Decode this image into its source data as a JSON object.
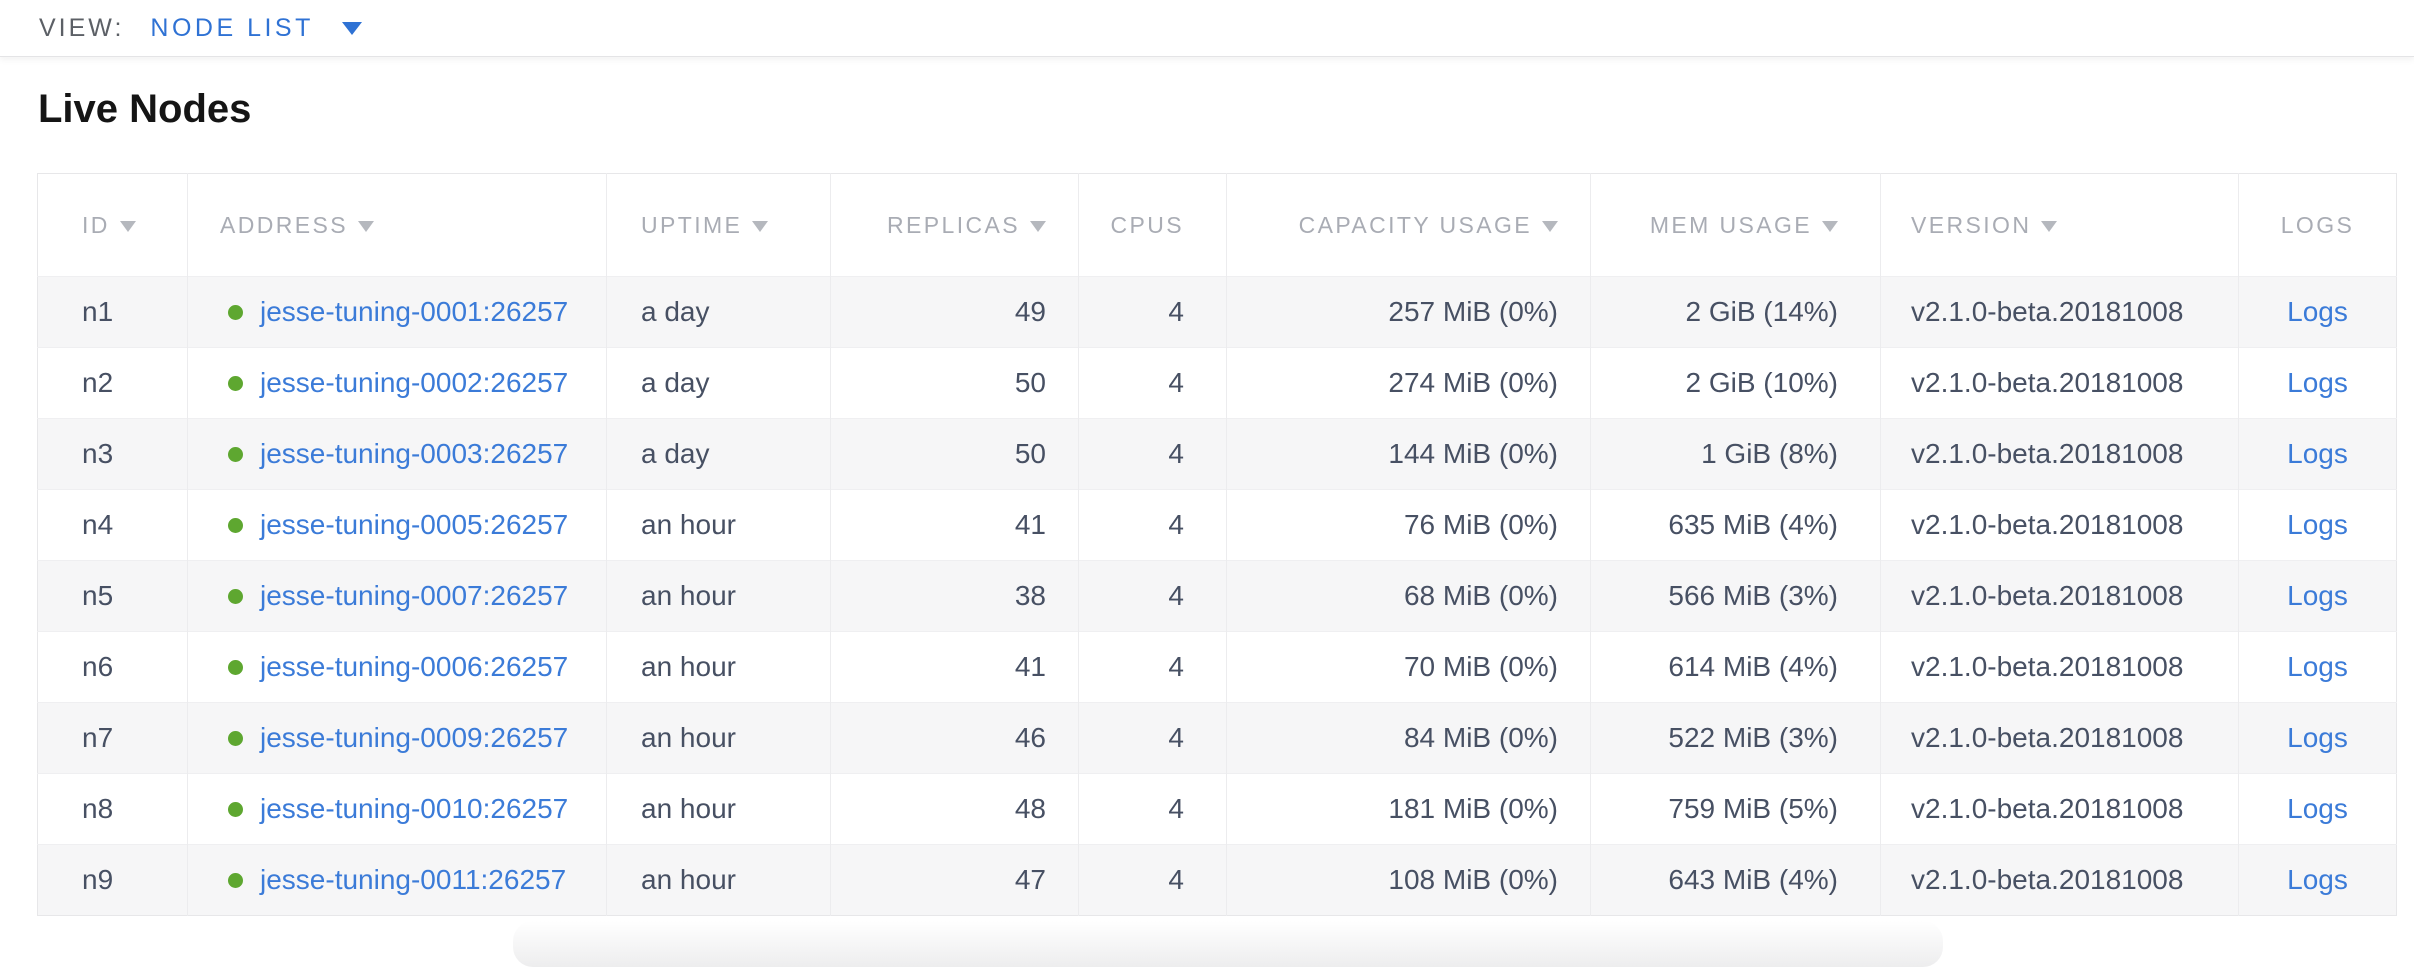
{
  "view_bar": {
    "label": "VIEW:",
    "selected": "NODE LIST"
  },
  "page": {
    "title": "Live Nodes"
  },
  "table": {
    "columns": [
      {
        "key": "id",
        "label": "ID",
        "sortable": true
      },
      {
        "key": "addr",
        "label": "ADDRESS",
        "sortable": true
      },
      {
        "key": "uptime",
        "label": "UPTIME",
        "sortable": true
      },
      {
        "key": "repl",
        "label": "REPLICAS",
        "sortable": true
      },
      {
        "key": "cpus",
        "label": "CPUS",
        "sortable": false
      },
      {
        "key": "cap",
        "label": "CAPACITY USAGE",
        "sortable": true
      },
      {
        "key": "mem",
        "label": "MEM USAGE",
        "sortable": true
      },
      {
        "key": "ver",
        "label": "VERSION",
        "sortable": true
      },
      {
        "key": "logs",
        "label": "LOGS",
        "sortable": false
      }
    ],
    "rows": [
      {
        "id": "n1",
        "address": "jesse-tuning-0001:26257",
        "status": "live",
        "uptime": "a day",
        "replicas": "49",
        "cpus": "4",
        "capacity_usage": "257 MiB (0%)",
        "mem_usage": "2 GiB (14%)",
        "version": "v2.1.0-beta.20181008",
        "logs_label": "Logs"
      },
      {
        "id": "n2",
        "address": "jesse-tuning-0002:26257",
        "status": "live",
        "uptime": "a day",
        "replicas": "50",
        "cpus": "4",
        "capacity_usage": "274 MiB (0%)",
        "mem_usage": "2 GiB (10%)",
        "version": "v2.1.0-beta.20181008",
        "logs_label": "Logs"
      },
      {
        "id": "n3",
        "address": "jesse-tuning-0003:26257",
        "status": "live",
        "uptime": "a day",
        "replicas": "50",
        "cpus": "4",
        "capacity_usage": "144 MiB (0%)",
        "mem_usage": "1 GiB (8%)",
        "version": "v2.1.0-beta.20181008",
        "logs_label": "Logs"
      },
      {
        "id": "n4",
        "address": "jesse-tuning-0005:26257",
        "status": "live",
        "uptime": "an hour",
        "replicas": "41",
        "cpus": "4",
        "capacity_usage": "76 MiB (0%)",
        "mem_usage": "635 MiB (4%)",
        "version": "v2.1.0-beta.20181008",
        "logs_label": "Logs"
      },
      {
        "id": "n5",
        "address": "jesse-tuning-0007:26257",
        "status": "live",
        "uptime": "an hour",
        "replicas": "38",
        "cpus": "4",
        "capacity_usage": "68 MiB (0%)",
        "mem_usage": "566 MiB (3%)",
        "version": "v2.1.0-beta.20181008",
        "logs_label": "Logs"
      },
      {
        "id": "n6",
        "address": "jesse-tuning-0006:26257",
        "status": "live",
        "uptime": "an hour",
        "replicas": "41",
        "cpus": "4",
        "capacity_usage": "70 MiB (0%)",
        "mem_usage": "614 MiB (4%)",
        "version": "v2.1.0-beta.20181008",
        "logs_label": "Logs"
      },
      {
        "id": "n7",
        "address": "jesse-tuning-0009:26257",
        "status": "live",
        "uptime": "an hour",
        "replicas": "46",
        "cpus": "4",
        "capacity_usage": "84 MiB (0%)",
        "mem_usage": "522 MiB (3%)",
        "version": "v2.1.0-beta.20181008",
        "logs_label": "Logs"
      },
      {
        "id": "n8",
        "address": "jesse-tuning-0010:26257",
        "status": "live",
        "uptime": "an hour",
        "replicas": "48",
        "cpus": "4",
        "capacity_usage": "181 MiB (0%)",
        "mem_usage": "759 MiB (5%)",
        "version": "v2.1.0-beta.20181008",
        "logs_label": "Logs"
      },
      {
        "id": "n9",
        "address": "jesse-tuning-0011:26257",
        "status": "live",
        "uptime": "an hour",
        "replicas": "47",
        "cpus": "4",
        "capacity_usage": "108 MiB (0%)",
        "mem_usage": "643 MiB (4%)",
        "version": "v2.1.0-beta.20181008",
        "logs_label": "Logs"
      }
    ]
  },
  "icons": {
    "dropdown_caret": "chevron-down-icon",
    "sort_caret": "sort-desc-icon",
    "node_status": "live-status-dot-icon"
  },
  "colors": {
    "link_blue": "#3b7bd8",
    "dropdown_blue": "#2f72d4",
    "status_green": "#5ea730",
    "header_gray": "#a9acb4",
    "body_slate": "#475063",
    "row_stripe": "#f6f6f7",
    "border": "#e7e7e9"
  }
}
